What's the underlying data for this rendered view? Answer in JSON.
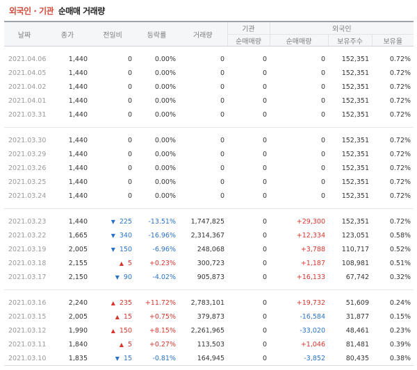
{
  "title": {
    "part1": "외국인",
    "sep": "·",
    "part2": "기관",
    "part3": "순매매 거래량"
  },
  "header": {
    "date": "날짜",
    "close": "종가",
    "change": "전일비",
    "rate": "등락률",
    "volume": "거래량",
    "inst_group": "기관",
    "foreign_group": "외국인",
    "inst_net": "순매매량",
    "foreign_net": "순매매량",
    "holdings": "보유주수",
    "ratio": "보유율"
  },
  "colors": {
    "up": "#d6352b",
    "down": "#2a72c7",
    "accent": "#d24b3a"
  },
  "groups": [
    [
      {
        "date": "2021.04.06",
        "close": "1,440",
        "dir": "",
        "change": "0",
        "rate": "0.00%",
        "volume": "0",
        "inst": "0",
        "foreign": "0",
        "holdings": "152,351",
        "ratio": "0.72%"
      },
      {
        "date": "2021.04.05",
        "close": "1,440",
        "dir": "",
        "change": "0",
        "rate": "0.00%",
        "volume": "0",
        "inst": "0",
        "foreign": "0",
        "holdings": "152,351",
        "ratio": "0.72%"
      },
      {
        "date": "2021.04.02",
        "close": "1,440",
        "dir": "",
        "change": "0",
        "rate": "0.00%",
        "volume": "0",
        "inst": "0",
        "foreign": "0",
        "holdings": "152,351",
        "ratio": "0.72%"
      },
      {
        "date": "2021.04.01",
        "close": "1,440",
        "dir": "",
        "change": "0",
        "rate": "0.00%",
        "volume": "0",
        "inst": "0",
        "foreign": "0",
        "holdings": "152,351",
        "ratio": "0.72%"
      },
      {
        "date": "2021.03.31",
        "close": "1,440",
        "dir": "",
        "change": "0",
        "rate": "0.00%",
        "volume": "0",
        "inst": "0",
        "foreign": "0",
        "holdings": "152,351",
        "ratio": "0.72%"
      }
    ],
    [
      {
        "date": "2021.03.30",
        "close": "1,440",
        "dir": "",
        "change": "0",
        "rate": "0.00%",
        "volume": "0",
        "inst": "0",
        "foreign": "0",
        "holdings": "152,351",
        "ratio": "0.72%"
      },
      {
        "date": "2021.03.29",
        "close": "1,440",
        "dir": "",
        "change": "0",
        "rate": "0.00%",
        "volume": "0",
        "inst": "0",
        "foreign": "0",
        "holdings": "152,351",
        "ratio": "0.72%"
      },
      {
        "date": "2021.03.26",
        "close": "1,440",
        "dir": "",
        "change": "0",
        "rate": "0.00%",
        "volume": "0",
        "inst": "0",
        "foreign": "0",
        "holdings": "152,351",
        "ratio": "0.72%"
      },
      {
        "date": "2021.03.25",
        "close": "1,440",
        "dir": "",
        "change": "0",
        "rate": "0.00%",
        "volume": "0",
        "inst": "0",
        "foreign": "0",
        "holdings": "152,351",
        "ratio": "0.72%"
      },
      {
        "date": "2021.03.24",
        "close": "1,440",
        "dir": "",
        "change": "0",
        "rate": "0.00%",
        "volume": "0",
        "inst": "0",
        "foreign": "0",
        "holdings": "152,351",
        "ratio": "0.72%"
      }
    ],
    [
      {
        "date": "2021.03.23",
        "close": "1,440",
        "dir": "down",
        "change": "225",
        "rate": "-13.51%",
        "volume": "1,747,825",
        "inst": "0",
        "foreign": "+29,300",
        "holdings": "152,351",
        "ratio": "0.72%"
      },
      {
        "date": "2021.03.22",
        "close": "1,665",
        "dir": "down",
        "change": "340",
        "rate": "-16.96%",
        "volume": "2,314,367",
        "inst": "0",
        "foreign": "+12,334",
        "holdings": "123,051",
        "ratio": "0.58%"
      },
      {
        "date": "2021.03.19",
        "close": "2,005",
        "dir": "down",
        "change": "150",
        "rate": "-6.96%",
        "volume": "248,068",
        "inst": "0",
        "foreign": "+3,788",
        "holdings": "110,717",
        "ratio": "0.52%"
      },
      {
        "date": "2021.03.18",
        "close": "2,155",
        "dir": "up",
        "change": "5",
        "rate": "+0.23%",
        "volume": "300,723",
        "inst": "0",
        "foreign": "+1,187",
        "holdings": "108,981",
        "ratio": "0.51%"
      },
      {
        "date": "2021.03.17",
        "close": "2,150",
        "dir": "down",
        "change": "90",
        "rate": "-4.02%",
        "volume": "905,873",
        "inst": "0",
        "foreign": "+16,133",
        "holdings": "67,742",
        "ratio": "0.32%"
      }
    ],
    [
      {
        "date": "2021.03.16",
        "close": "2,240",
        "dir": "up",
        "change": "235",
        "rate": "+11.72%",
        "volume": "2,783,101",
        "inst": "0",
        "foreign": "+19,732",
        "holdings": "51,609",
        "ratio": "0.24%"
      },
      {
        "date": "2021.03.15",
        "close": "2,005",
        "dir": "up",
        "change": "15",
        "rate": "+0.75%",
        "volume": "379,873",
        "inst": "0",
        "foreign": "-16,584",
        "holdings": "31,877",
        "ratio": "0.15%"
      },
      {
        "date": "2021.03.12",
        "close": "1,990",
        "dir": "up",
        "change": "150",
        "rate": "+8.15%",
        "volume": "2,261,965",
        "inst": "0",
        "foreign": "-33,020",
        "holdings": "48,461",
        "ratio": "0.23%"
      },
      {
        "date": "2021.03.11",
        "close": "1,840",
        "dir": "up",
        "change": "5",
        "rate": "+0.27%",
        "volume": "113,503",
        "inst": "0",
        "foreign": "+1,046",
        "holdings": "81,481",
        "ratio": "0.39%"
      },
      {
        "date": "2021.03.10",
        "close": "1,835",
        "dir": "down",
        "change": "15",
        "rate": "-0.81%",
        "volume": "164,945",
        "inst": "0",
        "foreign": "-3,852",
        "holdings": "80,435",
        "ratio": "0.38%"
      }
    ]
  ]
}
